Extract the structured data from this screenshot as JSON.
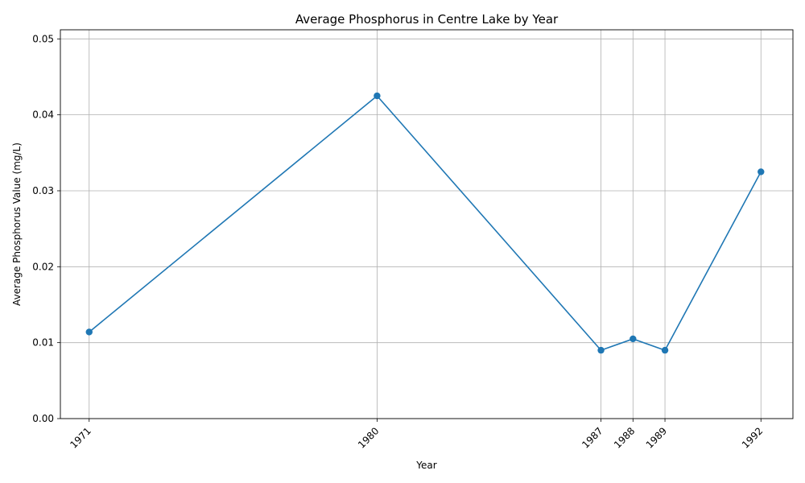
{
  "chart_data": {
    "type": "line",
    "title": "Average Phosphorus in Centre Lake by Year",
    "xlabel": "Year",
    "ylabel": "Average Phosphorus Value (mg/L)",
    "x": [
      1971,
      1980,
      1987,
      1988,
      1989,
      1992
    ],
    "x_tick_labels": [
      "1971",
      "1980",
      "1987",
      "1988",
      "1989",
      "1992"
    ],
    "xlim": [
      1970.1,
      1993.0
    ],
    "ylim": [
      0,
      0.0512
    ],
    "y_ticks": [
      0.0,
      0.01,
      0.02,
      0.03,
      0.04,
      0.05
    ],
    "y_tick_labels": [
      "0.00",
      "0.01",
      "0.02",
      "0.03",
      "0.04",
      "0.05"
    ],
    "grid": true,
    "series": [
      {
        "values": [
          0.0114,
          0.0425,
          0.009,
          0.0105,
          0.009,
          0.0325
        ],
        "color": "#1f77b4",
        "marker": "circle"
      }
    ]
  }
}
